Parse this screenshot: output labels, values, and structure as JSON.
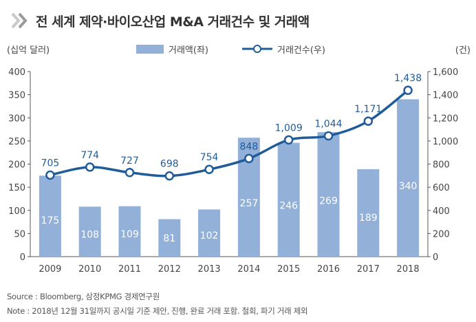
{
  "title": "전 세계 제약·바이오산업 M&A 거래건수 및 거래액",
  "source": "Source : Bloomberg, 삼정KPMG 경제연구원",
  "note": "Note : 2018년 12월 31일까지 공시일 기준 제안, 진행, 완료 거래 포함. 철회, 파기 거래 제외",
  "colors": {
    "bar": "#92b0d8",
    "line": "#1f5c99",
    "axis": "#555555"
  },
  "chart_data": {
    "type": "bar",
    "categories": [
      "2009",
      "2010",
      "2011",
      "2012",
      "2013",
      "2014",
      "2015",
      "2016",
      "2017",
      "2018"
    ],
    "series": [
      {
        "name": "거래액(좌)",
        "type": "bar",
        "axis": "left",
        "values": [
          175,
          108,
          109,
          81,
          102,
          257,
          246,
          269,
          189,
          340
        ]
      },
      {
        "name": "거래건수(우)",
        "type": "line",
        "axis": "right",
        "values": [
          705,
          774,
          727,
          698,
          754,
          848,
          1009,
          1044,
          1171,
          1438
        ]
      }
    ],
    "ylabel_left": "(십억 달러)",
    "ylabel_right": "(건)",
    "ylim_left": [
      0,
      400
    ],
    "ylim_right": [
      0,
      1600
    ],
    "yticks_left": [
      "0",
      "50",
      "100",
      "150",
      "200",
      "250",
      "300",
      "350",
      "400"
    ],
    "yticks_right": [
      "0",
      "200",
      "400",
      "600",
      "800",
      "1,000",
      "1,200",
      "1,400",
      "1,600"
    ],
    "line_labels": [
      "705",
      "774",
      "727",
      "698",
      "754",
      "848",
      "1,009",
      "1,044",
      "1,171",
      "1,438"
    ],
    "grid": false,
    "legend_position": "top"
  }
}
